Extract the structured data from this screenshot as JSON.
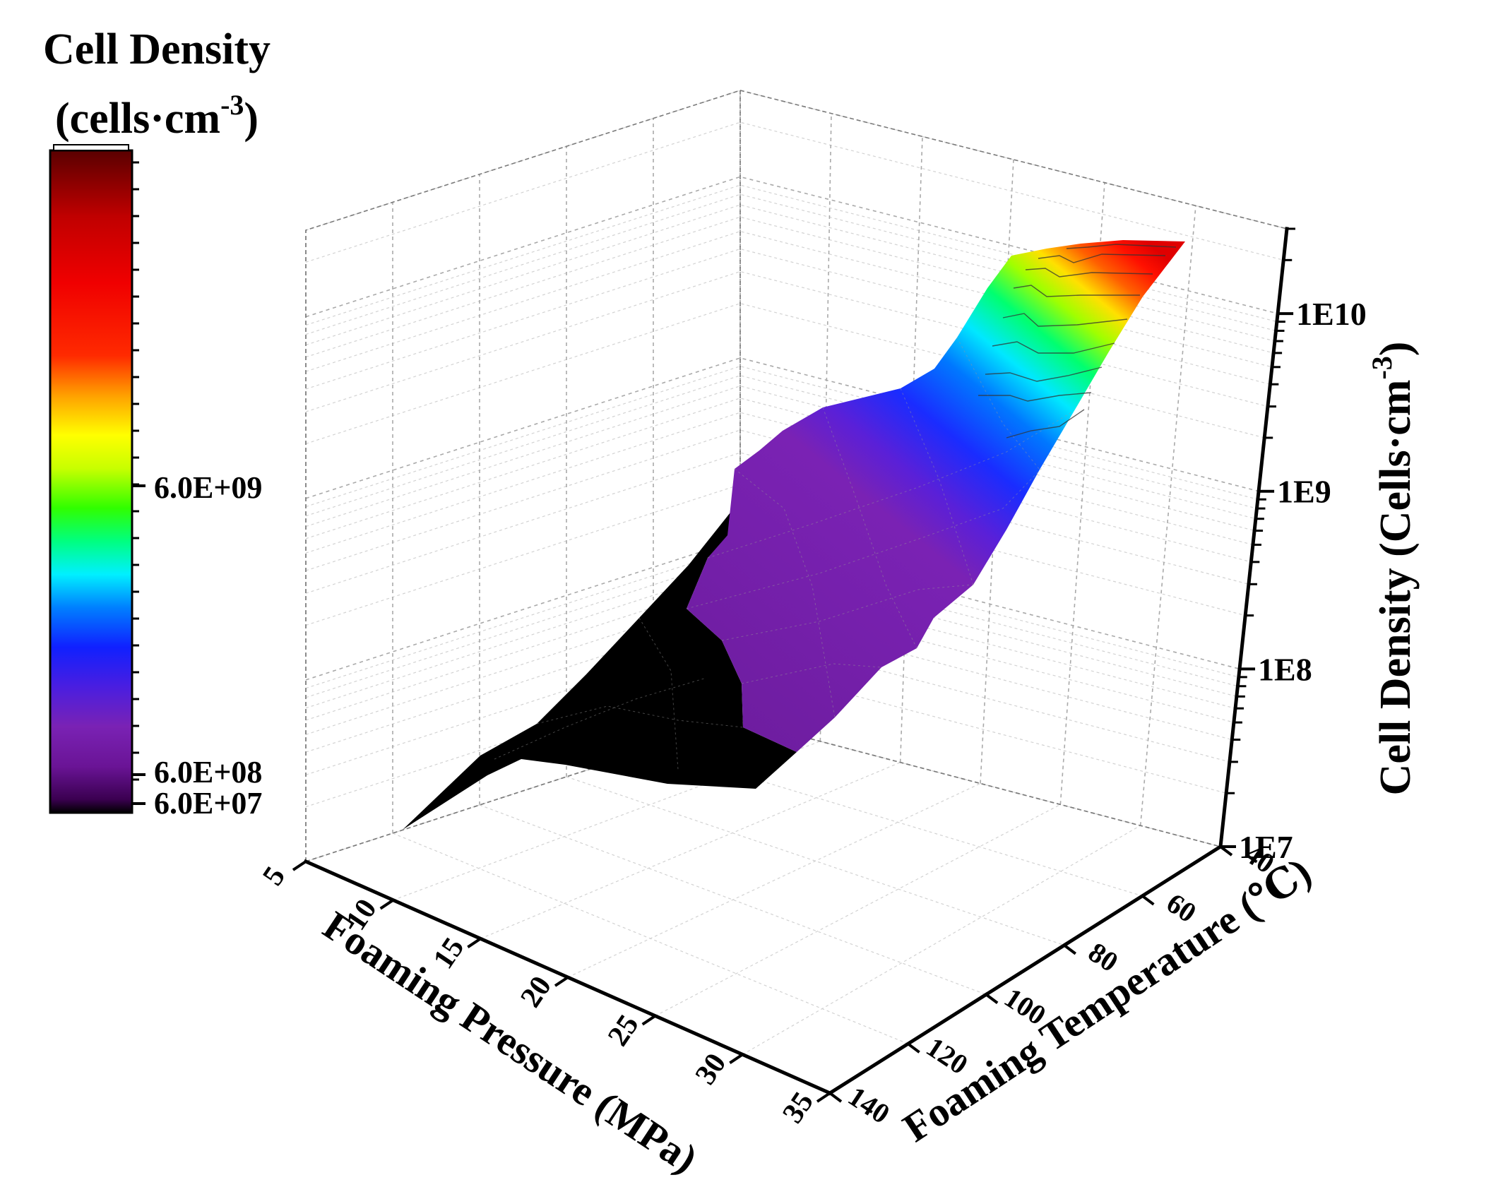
{
  "chart_data": {
    "type": "surface3d",
    "colorbar": {
      "title_line1": "Cell Density",
      "title_line2_prefix": "(cells·cm",
      "title_line2_sup": "-3",
      "title_line2_suffix": ")",
      "tick_labels": [
        "6.0E+09",
        "6.0E+08",
        "6.0E+07"
      ],
      "colors": [
        "#000000",
        "#2a0038",
        "#5a1080",
        "#7a22b4",
        "#5b1fd6",
        "#2020ff",
        "#0080ff",
        "#00ffff",
        "#00ff60",
        "#8cff00",
        "#ffff00",
        "#ff9000",
        "#ff2a00",
        "#ee0000",
        "#c00000",
        "#6e0000"
      ]
    },
    "x_axis": {
      "label": "Foaming Pressure (MPa)",
      "ticks": [
        "5",
        "10",
        "15",
        "20",
        "25",
        "30",
        "35"
      ],
      "range": [
        5,
        35
      ]
    },
    "y_axis": {
      "label": "Foaming Temperature (℃)",
      "ticks": [
        "40",
        "60",
        "80",
        "100",
        "120",
        "140"
      ],
      "range": [
        40,
        140
      ]
    },
    "z_axis": {
      "label_prefix": "Cell Density (Cells·cm",
      "label_sup": "-3",
      "label_suffix": ")",
      "scale": "log",
      "ticks": [
        "1E7",
        "1E8",
        "1E9",
        "1E10"
      ],
      "range": [
        10000000.0,
        30000000000.0
      ]
    },
    "grid": true,
    "surface_note_levels": [
      "black (below 6.0E+07)",
      "purple",
      "blue",
      "cyan",
      "green",
      "yellow",
      "red"
    ]
  }
}
